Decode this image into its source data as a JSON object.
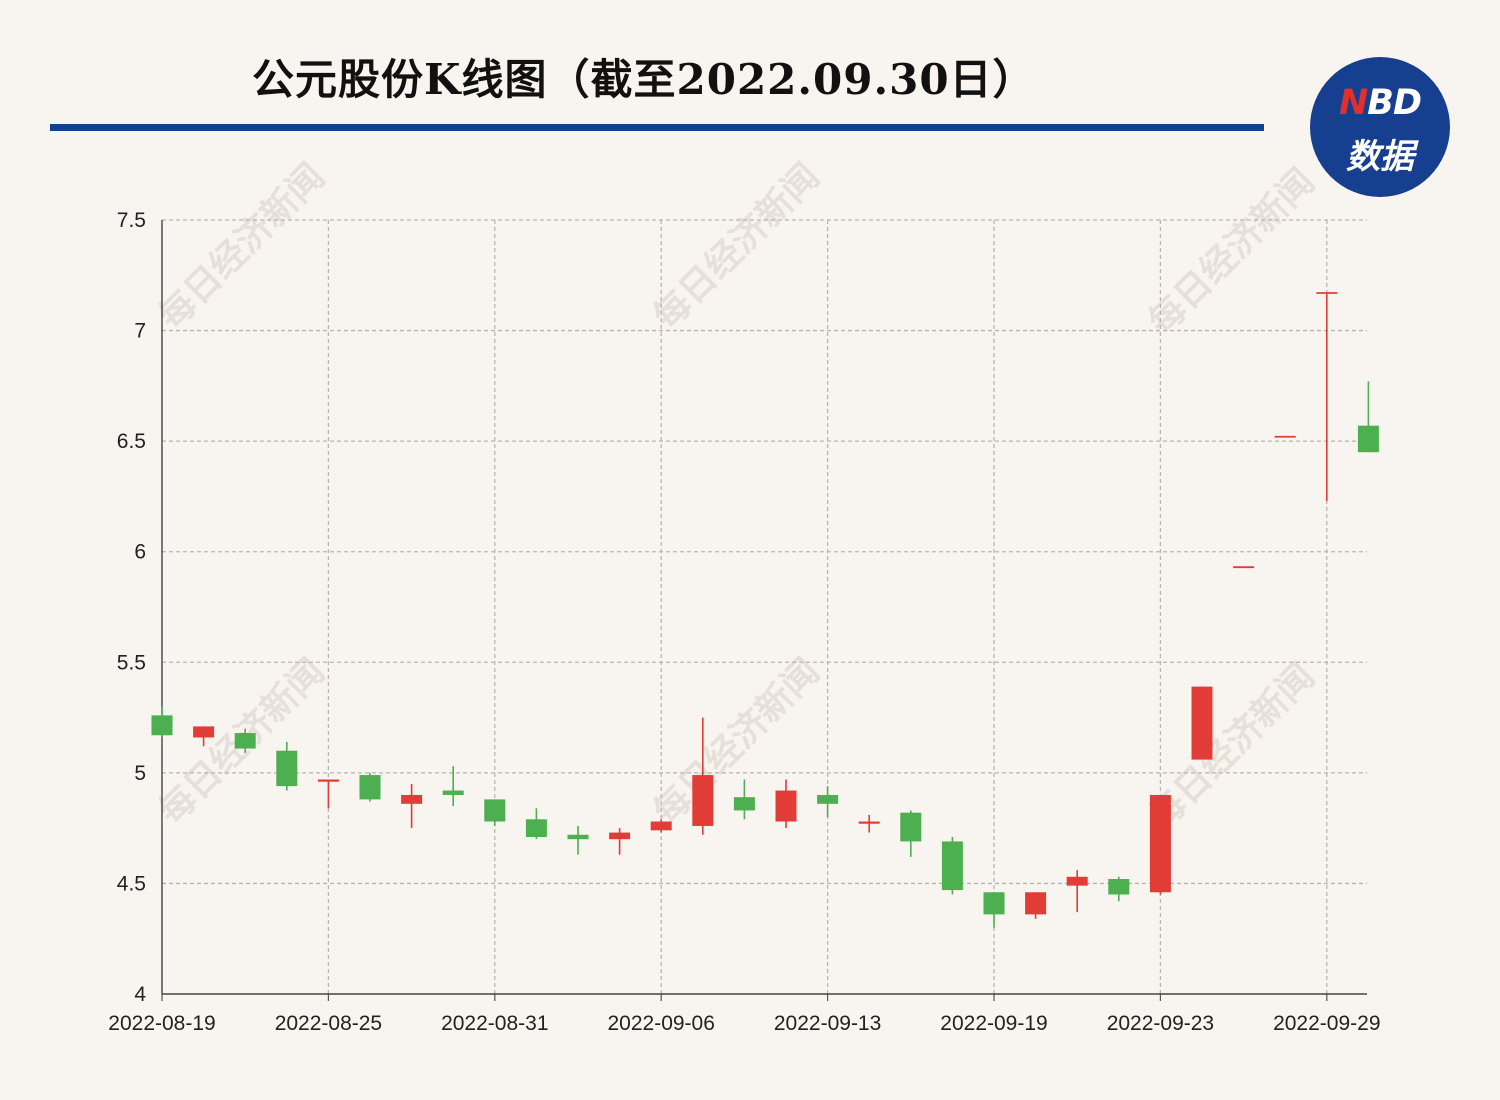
{
  "header": {
    "title": "公元股份K线图（截至2022.09.30日）",
    "logo_top_n": "N",
    "logo_top_rest": "BD",
    "logo_bottom": "数据"
  },
  "watermark": "每日经济新闻",
  "colors": {
    "up": "#e23c36",
    "down": "#4caf50",
    "rule": "#173f8f",
    "background": "#f8f5f0"
  },
  "chart_data": {
    "type": "candlestick",
    "title": "公元股份K线图（截至2022.09.30日）",
    "ylim": [
      4,
      7.5
    ],
    "yticks": [
      "4",
      "4.5",
      "5",
      "5.5",
      "6",
      "6.5",
      "7",
      "7.5"
    ],
    "xticks": [
      {
        "label": "2022-08-19",
        "index": 0
      },
      {
        "label": "2022-08-25",
        "index": 4
      },
      {
        "label": "2022-08-31",
        "index": 8
      },
      {
        "label": "2022-09-06",
        "index": 12
      },
      {
        "label": "2022-09-13",
        "index": 16
      },
      {
        "label": "2022-09-19",
        "index": 20
      },
      {
        "label": "2022-09-23",
        "index": 24
      },
      {
        "label": "2022-09-29",
        "index": 28
      }
    ],
    "grid": true,
    "candles": [
      {
        "open": 5.26,
        "close": 5.17,
        "high": 5.3,
        "low": 5.16
      },
      {
        "open": 5.16,
        "close": 5.21,
        "high": 5.21,
        "low": 5.12
      },
      {
        "open": 5.18,
        "close": 5.11,
        "high": 5.2,
        "low": 5.09
      },
      {
        "open": 5.1,
        "close": 4.94,
        "high": 5.14,
        "low": 4.92
      },
      {
        "open": 4.96,
        "close": 4.97,
        "high": 4.97,
        "low": 4.84
      },
      {
        "open": 4.99,
        "close": 4.88,
        "high": 5.0,
        "low": 4.87
      },
      {
        "open": 4.86,
        "close": 4.9,
        "high": 4.95,
        "low": 4.75
      },
      {
        "open": 4.92,
        "close": 4.9,
        "high": 5.03,
        "low": 4.85
      },
      {
        "open": 4.88,
        "close": 4.78,
        "high": 4.88,
        "low": 4.76
      },
      {
        "open": 4.79,
        "close": 4.71,
        "high": 4.84,
        "low": 4.7
      },
      {
        "open": 4.72,
        "close": 4.7,
        "high": 4.76,
        "low": 4.63
      },
      {
        "open": 4.7,
        "close": 4.73,
        "high": 4.75,
        "low": 4.63
      },
      {
        "open": 4.74,
        "close": 4.78,
        "high": 4.79,
        "low": 4.73
      },
      {
        "open": 4.76,
        "close": 4.99,
        "high": 5.25,
        "low": 4.72
      },
      {
        "open": 4.89,
        "close": 4.83,
        "high": 4.97,
        "low": 4.79
      },
      {
        "open": 4.78,
        "close": 4.92,
        "high": 4.97,
        "low": 4.75
      },
      {
        "open": 4.9,
        "close": 4.86,
        "high": 4.94,
        "low": 4.8
      },
      {
        "open": 4.77,
        "close": 4.78,
        "high": 4.81,
        "low": 4.73
      },
      {
        "open": 4.82,
        "close": 4.69,
        "high": 4.83,
        "low": 4.62
      },
      {
        "open": 4.69,
        "close": 4.47,
        "high": 4.71,
        "low": 4.45
      },
      {
        "open": 4.46,
        "close": 4.36,
        "high": 4.46,
        "low": 4.3
      },
      {
        "open": 4.36,
        "close": 4.46,
        "high": 4.46,
        "low": 4.34
      },
      {
        "open": 4.49,
        "close": 4.53,
        "high": 4.56,
        "low": 4.37
      },
      {
        "open": 4.52,
        "close": 4.45,
        "high": 4.53,
        "low": 4.42
      },
      {
        "open": 4.46,
        "close": 4.9,
        "high": 4.9,
        "low": 4.45
      },
      {
        "open": 5.06,
        "close": 5.39,
        "high": 5.39,
        "low": 5.06
      },
      {
        "open": 5.93,
        "close": 5.93,
        "high": 5.93,
        "low": 5.93
      },
      {
        "open": 6.52,
        "close": 6.52,
        "high": 6.52,
        "low": 6.52
      },
      {
        "open": 7.17,
        "close": 7.17,
        "high": 7.17,
        "low": 6.23
      },
      {
        "open": 6.57,
        "close": 6.45,
        "high": 6.77,
        "low": 6.45
      }
    ]
  }
}
